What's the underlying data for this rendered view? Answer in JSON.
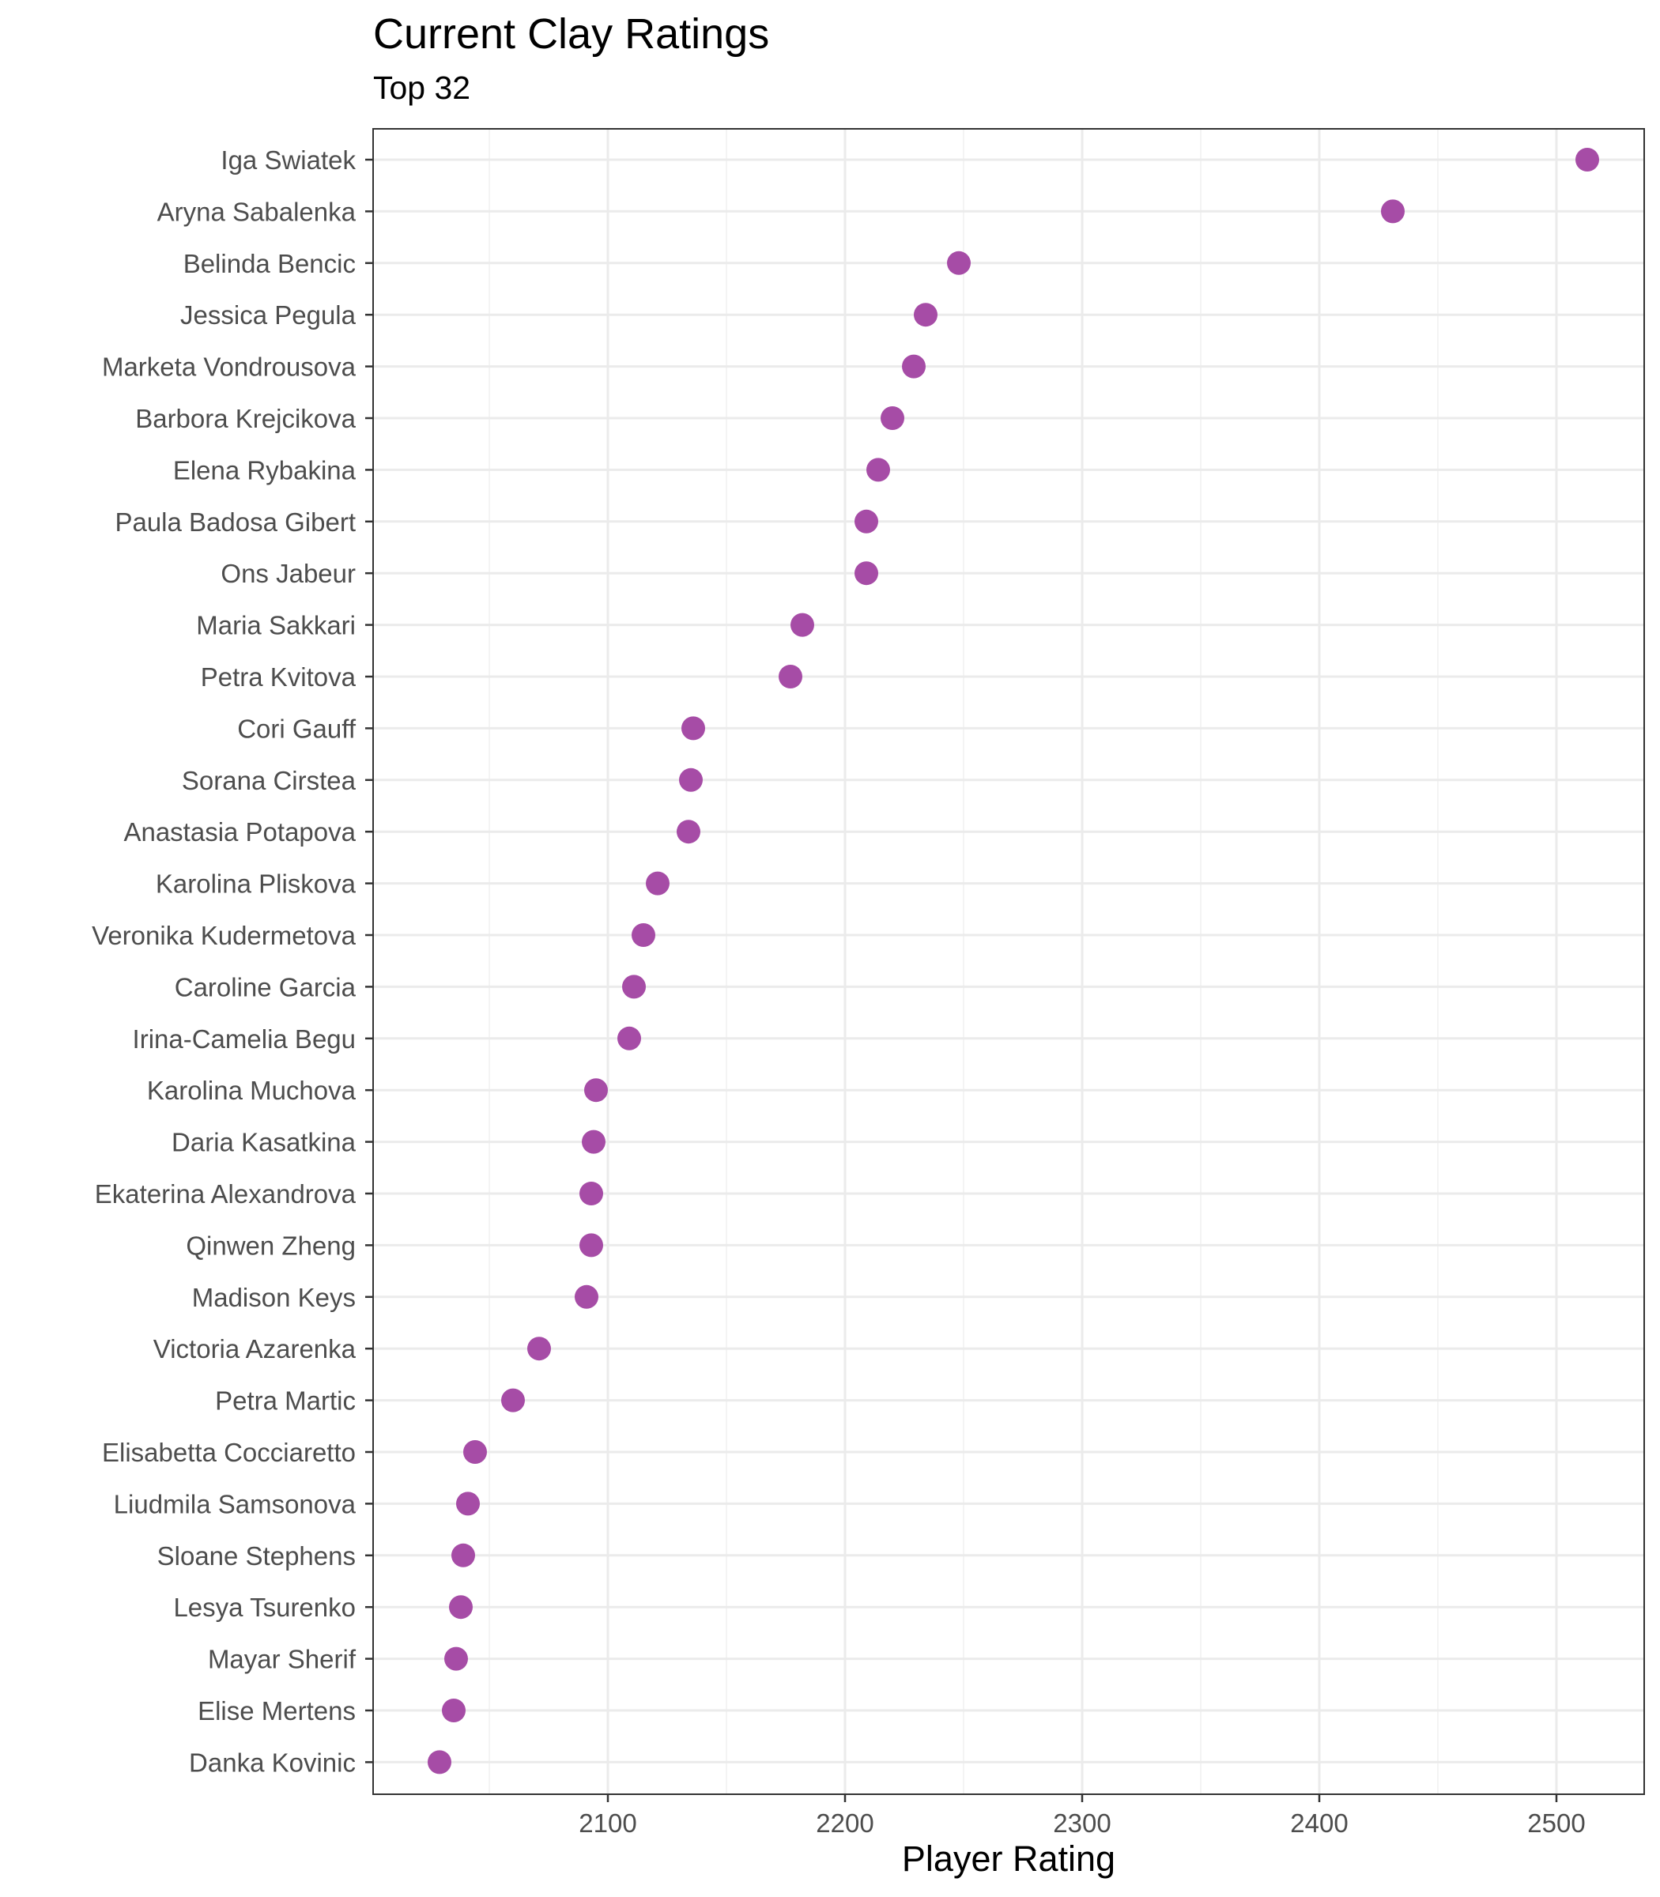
{
  "chart_data": {
    "type": "scatter",
    "title": "Current Clay Ratings",
    "subtitle": "Top 32",
    "xlabel": "Player Rating",
    "ylabel": "",
    "xlim": [
      2001,
      2537
    ],
    "xticks": [
      2100,
      2200,
      2300,
      2400,
      2500
    ],
    "grid": true,
    "point_color": "#a64ca6",
    "categories": [
      "Iga Swiatek",
      "Aryna Sabalenka",
      "Belinda Bencic",
      "Jessica Pegula",
      "Marketa Vondrousova",
      "Barbora Krejcikova",
      "Elena Rybakina",
      "Paula Badosa Gibert",
      "Ons Jabeur",
      "Maria Sakkari",
      "Petra Kvitova",
      "Cori Gauff",
      "Sorana Cirstea",
      "Anastasia Potapova",
      "Karolina Pliskova",
      "Veronika Kudermetova",
      "Caroline Garcia",
      "Irina-Camelia Begu",
      "Karolina Muchova",
      "Daria Kasatkina",
      "Ekaterina Alexandrova",
      "Qinwen Zheng",
      "Madison Keys",
      "Victoria Azarenka",
      "Petra Martic",
      "Elisabetta Cocciaretto",
      "Liudmila Samsonova",
      "Sloane Stephens",
      "Lesya Tsurenko",
      "Mayar Sherif",
      "Elise Mertens",
      "Danka Kovinic"
    ],
    "values": [
      2513,
      2431,
      2248,
      2234,
      2229,
      2220,
      2214,
      2209,
      2209,
      2182,
      2177,
      2136,
      2135,
      2134,
      2121,
      2115,
      2111,
      2109,
      2095,
      2094,
      2093,
      2093,
      2091,
      2071,
      2060,
      2044,
      2041,
      2039,
      2038,
      2036,
      2035,
      2029
    ]
  }
}
